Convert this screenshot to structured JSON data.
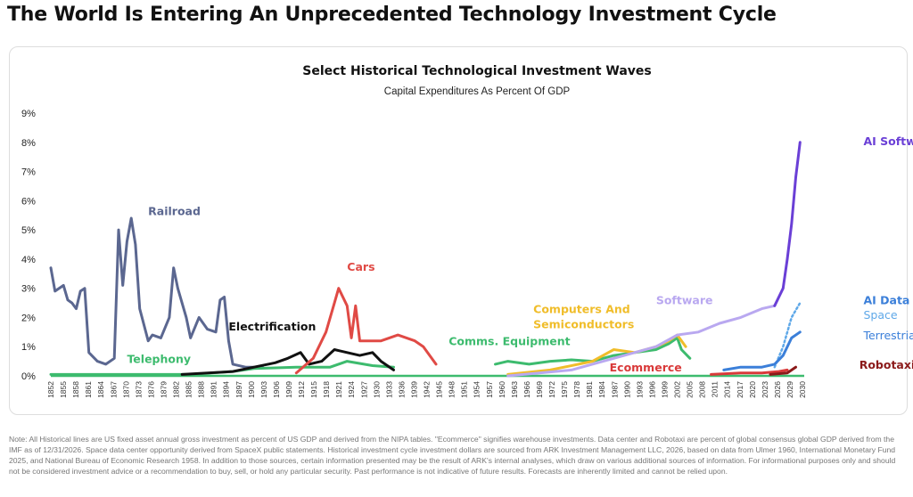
{
  "headline": "The World Is Entering An Unprecedented Technology Investment Cycle",
  "note": "Note: All Historical lines are US fixed asset annual gross investment as percent of US GDP and derived from the NIPA tables. \"Ecommerce\" signifies warehouse investments. Data center and Robotaxi are percent of global consensus global GDP derived from the IMF as of 12/31/2026. Space data center opportunity derived from SpaceX public statements. Historical investment cycle investment dollars are sourced from ARK Investment Management LLC, 2026, based on data from Ulmer 1960, International Monetary Fund 2025, and National Bureau of Economic Research 1958. In addition to those sources, certain information presented may be the result of ARK's internal analyses, which draw on various additional sources of information. For informational purposes only and should not be considered investment advice or a recommendation to buy, sell, or hold any particular security. Past performance is not indicative of future results. Forecasts are inherently limited and cannot be relied upon.",
  "chart_data": {
    "type": "line",
    "title": "Select Historical Technological Investment Waves",
    "subtitle": "Capital Expenditures As Percent Of GDP",
    "xlabel": "",
    "ylabel": "",
    "ylim": [
      0,
      9
    ],
    "yticks": [
      "0%",
      "1%",
      "2%",
      "3%",
      "4%",
      "5%",
      "6%",
      "7%",
      "8%",
      "9%"
    ],
    "xlim": [
      1852,
      2030
    ],
    "grid": false,
    "series": [
      {
        "name": "Railroad",
        "color": "#5b6790",
        "label_at": [
          1875,
          5.5
        ],
        "points": [
          [
            1852,
            3.7
          ],
          [
            1853,
            2.9
          ],
          [
            1855,
            3.1
          ],
          [
            1856,
            2.6
          ],
          [
            1857,
            2.5
          ],
          [
            1858,
            2.3
          ],
          [
            1859,
            2.9
          ],
          [
            1860,
            3.0
          ],
          [
            1861,
            0.8
          ],
          [
            1863,
            0.5
          ],
          [
            1865,
            0.4
          ],
          [
            1867,
            0.6
          ],
          [
            1868,
            5.0
          ],
          [
            1869,
            3.1
          ],
          [
            1870,
            4.6
          ],
          [
            1871,
            5.4
          ],
          [
            1872,
            4.5
          ],
          [
            1873,
            2.3
          ],
          [
            1875,
            1.2
          ],
          [
            1876,
            1.4
          ],
          [
            1878,
            1.3
          ],
          [
            1880,
            2.0
          ],
          [
            1881,
            3.7
          ],
          [
            1882,
            3.0
          ],
          [
            1884,
            2.0
          ],
          [
            1885,
            1.3
          ],
          [
            1887,
            2.0
          ],
          [
            1889,
            1.6
          ],
          [
            1891,
            1.5
          ],
          [
            1892,
            2.6
          ],
          [
            1893,
            2.7
          ],
          [
            1894,
            1.2
          ],
          [
            1895,
            0.4
          ],
          [
            1898,
            0.3
          ],
          [
            1902,
            0.3
          ]
        ]
      },
      {
        "name": "Telephony",
        "color": "#3dbb6e",
        "label_at": [
          1870,
          0.45
        ],
        "points": [
          [
            1852,
            0.05
          ],
          [
            1885,
            0.05
          ],
          [
            1895,
            0.15
          ],
          [
            1900,
            0.25
          ],
          [
            1910,
            0.3
          ],
          [
            1918,
            0.3
          ],
          [
            1922,
            0.5
          ],
          [
            1928,
            0.35
          ],
          [
            1933,
            0.3
          ]
        ]
      },
      {
        "name": "Electrification",
        "color": "#111111",
        "label_at": [
          1894,
          1.55
        ],
        "points": [
          [
            1883,
            0.05
          ],
          [
            1895,
            0.15
          ],
          [
            1900,
            0.3
          ],
          [
            1905,
            0.45
          ],
          [
            1908,
            0.6
          ],
          [
            1911,
            0.8
          ],
          [
            1913,
            0.4
          ],
          [
            1916,
            0.5
          ],
          [
            1919,
            0.9
          ],
          [
            1922,
            0.8
          ],
          [
            1925,
            0.7
          ],
          [
            1928,
            0.8
          ],
          [
            1930,
            0.5
          ],
          [
            1933,
            0.2
          ]
        ]
      },
      {
        "name": "Cars",
        "color": "#e04a45",
        "label_at": [
          1922,
          3.6
        ],
        "points": [
          [
            1910,
            0.1
          ],
          [
            1914,
            0.6
          ],
          [
            1917,
            1.5
          ],
          [
            1919,
            2.5
          ],
          [
            1920,
            3.0
          ],
          [
            1922,
            2.4
          ],
          [
            1923,
            1.3
          ],
          [
            1924,
            2.4
          ],
          [
            1925,
            1.2
          ],
          [
            1930,
            1.2
          ],
          [
            1934,
            1.4
          ],
          [
            1938,
            1.2
          ],
          [
            1940,
            1.0
          ],
          [
            1943,
            0.4
          ]
        ]
      },
      {
        "name": "Comms. Equipment",
        "color": "#3dbb6e",
        "label_at": [
          1946,
          1.05
        ],
        "points": [
          [
            1957,
            0.4
          ],
          [
            1960,
            0.5
          ],
          [
            1965,
            0.4
          ],
          [
            1970,
            0.5
          ],
          [
            1975,
            0.55
          ],
          [
            1980,
            0.5
          ],
          [
            1985,
            0.7
          ],
          [
            1990,
            0.8
          ],
          [
            1995,
            0.9
          ],
          [
            1998,
            1.1
          ],
          [
            2000,
            1.3
          ],
          [
            2001,
            0.9
          ],
          [
            2003,
            0.6
          ]
        ]
      },
      {
        "name": "Computers And Semiconductors",
        "color": "#f0bd2a",
        "label_at": [
          1966,
          2.15
        ],
        "points": [
          [
            1960,
            0.05
          ],
          [
            1970,
            0.2
          ],
          [
            1980,
            0.5
          ],
          [
            1985,
            0.9
          ],
          [
            1990,
            0.8
          ],
          [
            1995,
            1.0
          ],
          [
            1998,
            1.2
          ],
          [
            2000,
            1.4
          ],
          [
            2002,
            1.0
          ]
        ]
      },
      {
        "name": "Software",
        "color": "#b9a8f0",
        "label_at": [
          1995,
          2.45
        ],
        "points": [
          [
            1960,
            0.0
          ],
          [
            1975,
            0.2
          ],
          [
            1985,
            0.6
          ],
          [
            1995,
            1.0
          ],
          [
            2000,
            1.4
          ],
          [
            2005,
            1.5
          ],
          [
            2010,
            1.8
          ],
          [
            2015,
            2.0
          ],
          [
            2020,
            2.3
          ],
          [
            2023,
            2.4
          ]
        ]
      },
      {
        "name": "AI Software",
        "color": "#6a3fd6",
        "label_at": [
          2044,
          7.9
        ],
        "points": [
          [
            2023,
            2.4
          ],
          [
            2025,
            3.0
          ],
          [
            2026,
            4.0
          ],
          [
            2027,
            5.2
          ],
          [
            2028,
            6.8
          ],
          [
            2029,
            8.0
          ]
        ]
      },
      {
        "name": "Ecommerce",
        "color": "#d93a3a",
        "label_at": [
          1984,
          0.15
        ],
        "points": [
          [
            2008,
            0.05
          ],
          [
            2015,
            0.1
          ],
          [
            2020,
            0.1
          ],
          [
            2024,
            0.15
          ],
          [
            2026,
            0.2
          ]
        ]
      },
      {
        "name": "Robotaxis",
        "color": "#8b1a1a",
        "label_at": [
          2043,
          0.25
        ],
        "points": [
          [
            2022,
            0.05
          ],
          [
            2026,
            0.1
          ],
          [
            2028,
            0.3
          ]
        ]
      },
      {
        "name": "AI Data Centers",
        "color": "#3b7fd9",
        "label_at": [
          2044,
          2.45
        ],
        "points": []
      },
      {
        "name": "Space",
        "color": "#5fa8e8",
        "dashed": true,
        "label_at": [
          2044,
          1.95
        ],
        "points": [
          [
            2023,
            0.3
          ],
          [
            2025,
            1.0
          ],
          [
            2027,
            2.0
          ],
          [
            2029,
            2.5
          ]
        ]
      },
      {
        "name": "Terrestrial",
        "color": "#3b7fd9",
        "label_at": [
          2044,
          1.25
        ],
        "points": [
          [
            2011,
            0.2
          ],
          [
            2015,
            0.3
          ],
          [
            2020,
            0.3
          ],
          [
            2023,
            0.4
          ],
          [
            2025,
            0.7
          ],
          [
            2027,
            1.3
          ],
          [
            2029,
            1.5
          ]
        ]
      }
    ]
  }
}
